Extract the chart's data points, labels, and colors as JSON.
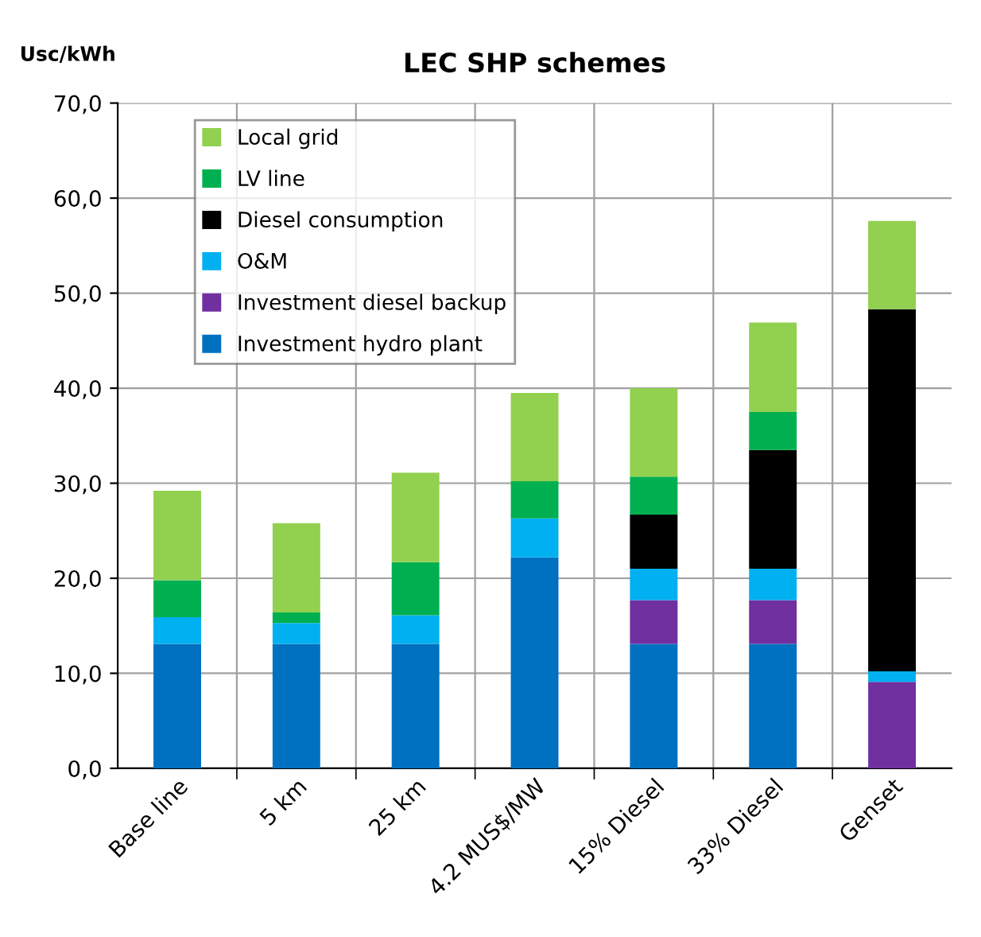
{
  "chart_data": {
    "type": "bar",
    "title": "LEC SHP schemes",
    "ylabel": "Usc/kWh",
    "stacked": true,
    "categories": [
      "Base line",
      "5 km",
      "25 km",
      "4.2 MUS$/MW",
      "15% Diesel",
      "33% Diesel",
      "Genset"
    ],
    "series": [
      {
        "name": "Investment hydro plant",
        "color": "#0070c0",
        "values": [
          13.1,
          13.1,
          13.1,
          22.2,
          13.1,
          13.1,
          null
        ]
      },
      {
        "name": "Investment diesel backup",
        "color": "#7030a0",
        "values": [
          null,
          null,
          null,
          null,
          4.6,
          4.6,
          9.1
        ]
      },
      {
        "name": "O&M",
        "color": "#00b0f0",
        "values": [
          2.8,
          2.2,
          3.0,
          4.1,
          3.3,
          3.3,
          1.1
        ]
      },
      {
        "name": "Diesel consumption",
        "color": "#000000",
        "values": [
          null,
          null,
          null,
          null,
          5.7,
          12.5,
          38.1
        ]
      },
      {
        "name": "LV line",
        "color": "#00b050",
        "values": [
          3.9,
          1.1,
          5.6,
          3.9,
          4.0,
          4.0,
          null
        ]
      },
      {
        "name": "Local grid",
        "color": "#92d050",
        "values": [
          9.4,
          9.4,
          9.4,
          9.3,
          9.3,
          9.4,
          9.3
        ]
      }
    ],
    "ylim": [
      0,
      70
    ],
    "yticks": [
      {
        "value": 0,
        "label": "0,0"
      },
      {
        "value": 10,
        "label": "10,0"
      },
      {
        "value": 20,
        "label": "20,0"
      },
      {
        "value": 30,
        "label": "30,0"
      },
      {
        "value": 40,
        "label": "40,0"
      },
      {
        "value": 50,
        "label": "50,0"
      },
      {
        "value": 60,
        "label": "60,0"
      },
      {
        "value": 70,
        "label": "70,0"
      }
    ],
    "grid": true,
    "legend": "top left"
  }
}
